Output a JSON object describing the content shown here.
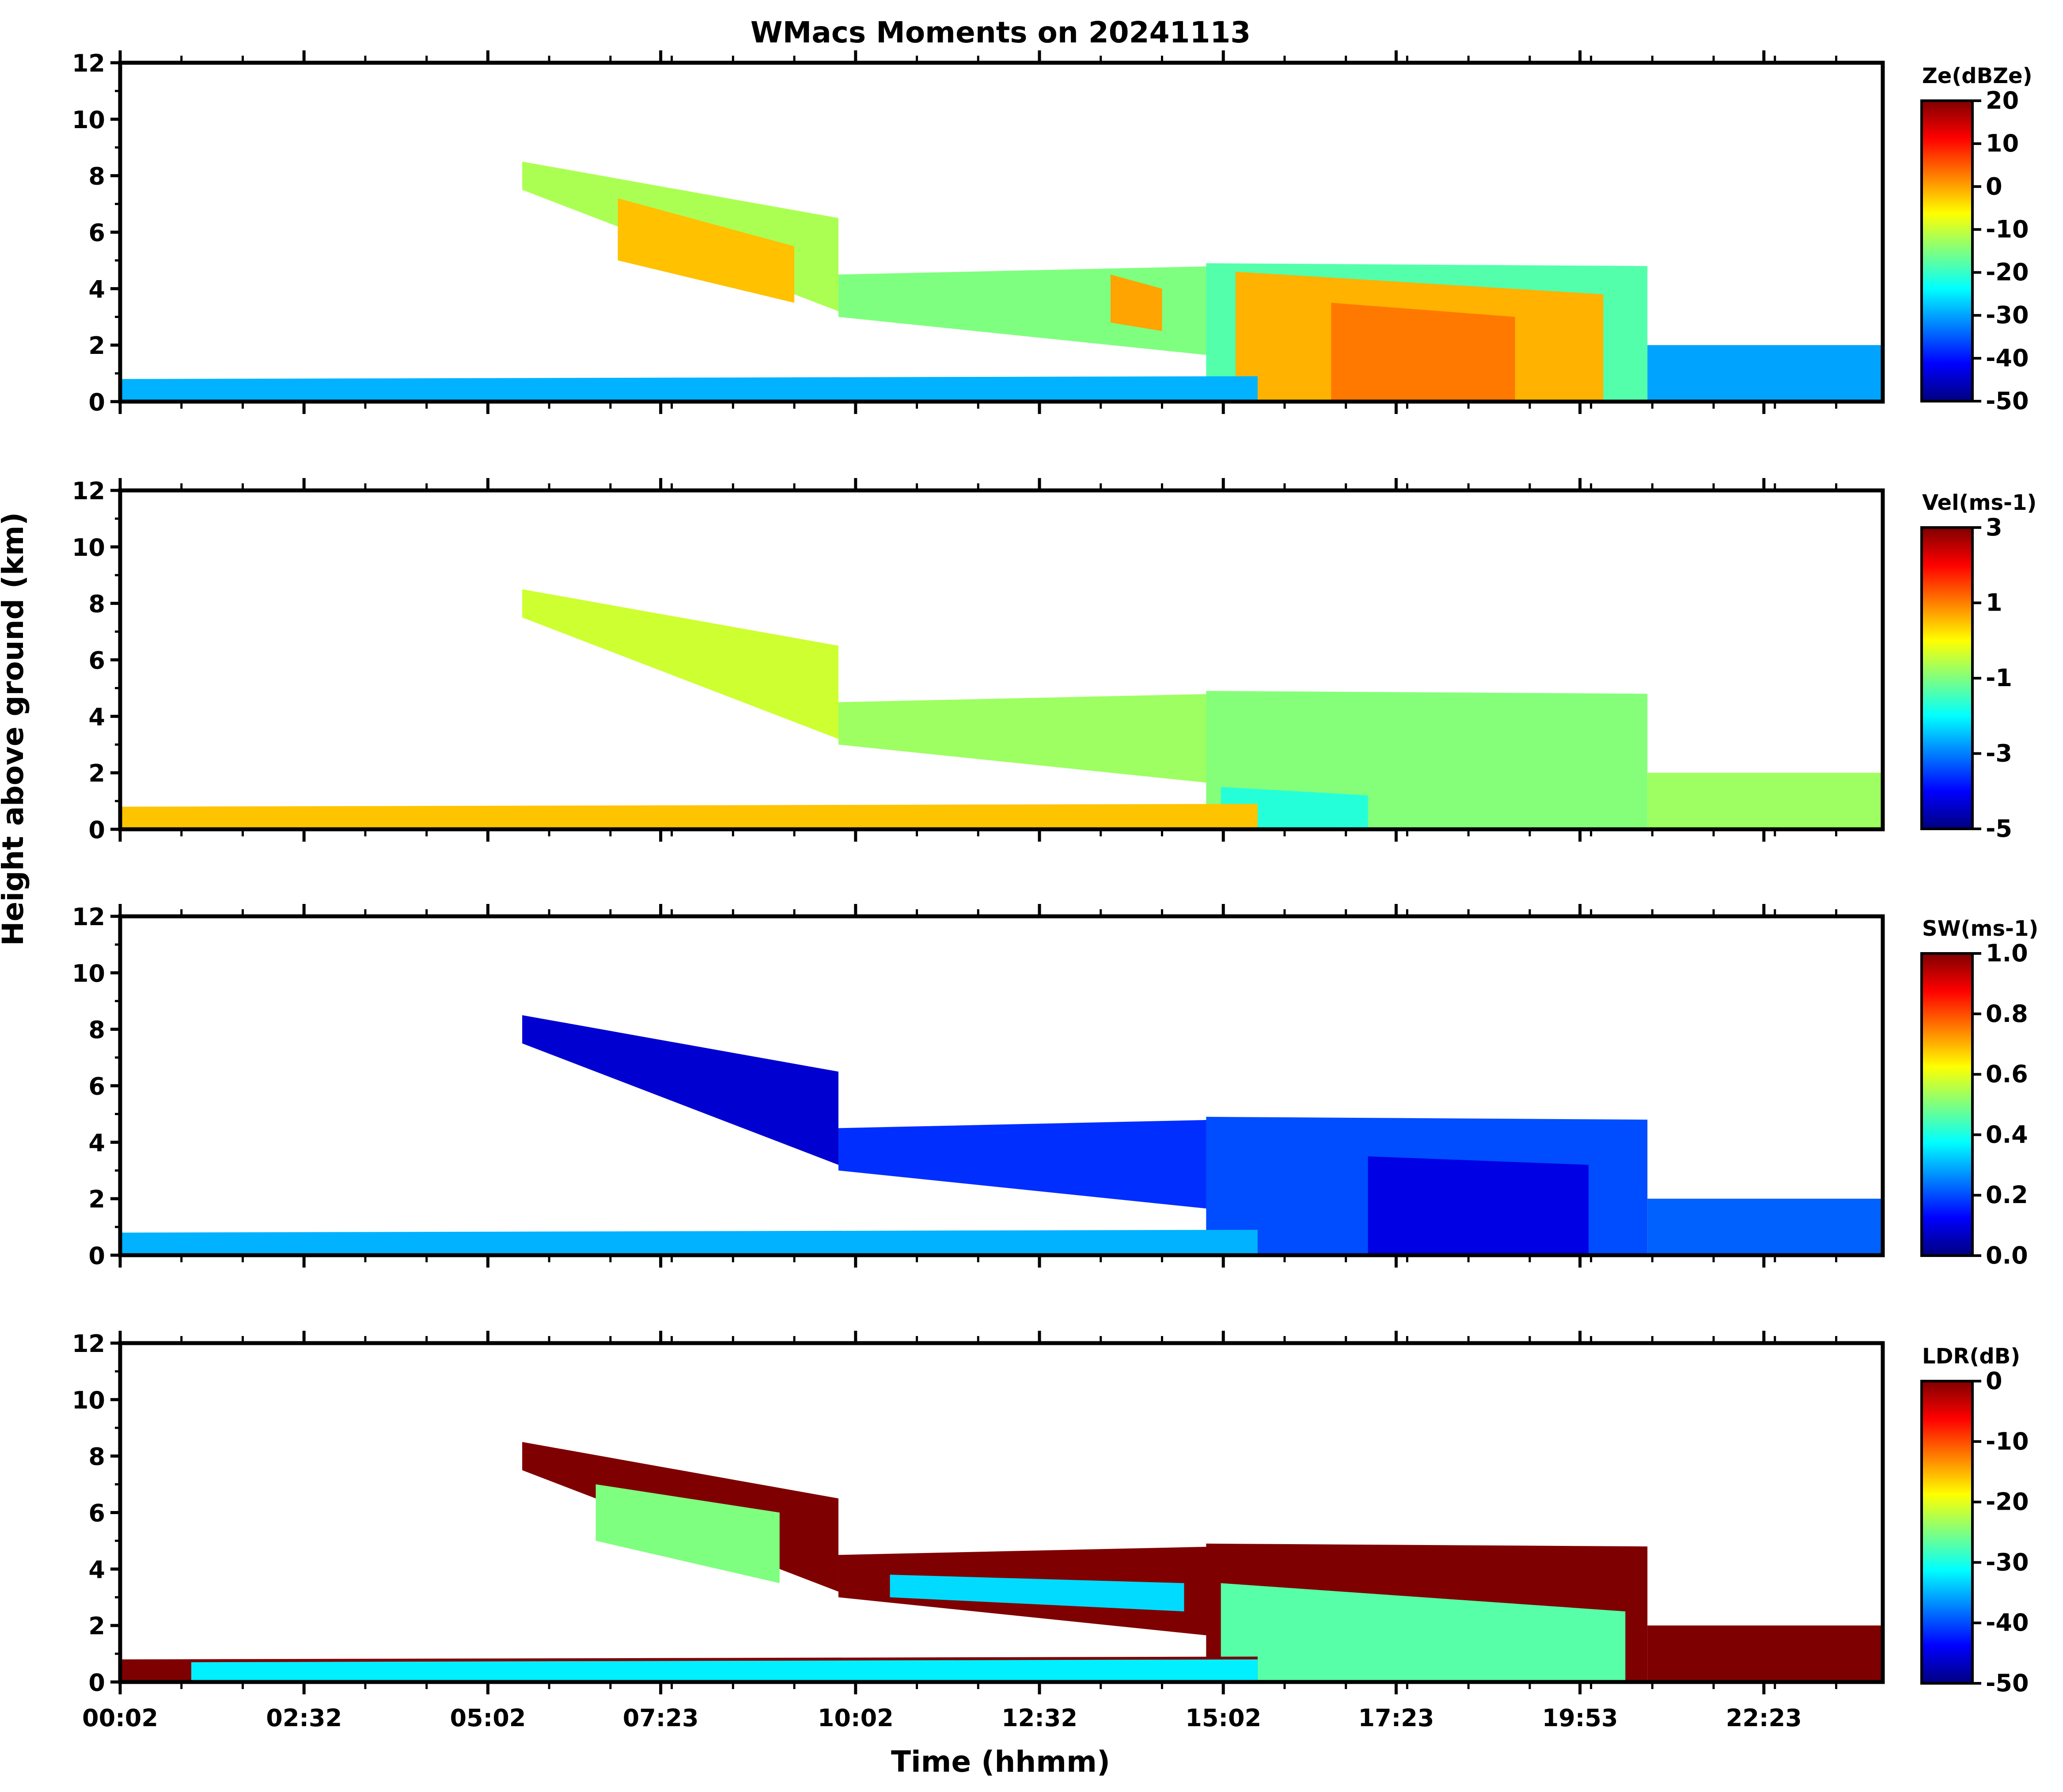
{
  "chart_data": {
    "type": "heatmap",
    "title": "WMacs Moments on 20241113",
    "xlabel": "Time (hhmm)",
    "ylabel": "Height above ground (km)",
    "xlim_hours": [
      0.0333,
      24.0
    ],
    "ylim": [
      0,
      12
    ],
    "x_ticks": [
      {
        "label": "00:02",
        "hour": 0.0333
      },
      {
        "label": "02:32",
        "hour": 2.5333
      },
      {
        "label": "05:02",
        "hour": 5.0333
      },
      {
        "label": "07:23",
        "hour": 7.3833
      },
      {
        "label": "10:02",
        "hour": 10.0333
      },
      {
        "label": "12:32",
        "hour": 12.5333
      },
      {
        "label": "15:02",
        "hour": 15.0333
      },
      {
        "label": "17:23",
        "hour": 17.3833
      },
      {
        "label": "19:53",
        "hour": 19.8833
      },
      {
        "label": "22:23",
        "hour": 22.3833
      }
    ],
    "y_ticks": [
      0,
      2,
      4,
      6,
      8,
      10,
      12
    ],
    "colormap": [
      "#00007f",
      "#0000ff",
      "#007fff",
      "#00ffff",
      "#7fff7f",
      "#ffff00",
      "#ff7f00",
      "#ff0000",
      "#7f0000"
    ],
    "panels": [
      {
        "name": "Ze",
        "colorbar_label": "Ze(dBZe)",
        "colorbar_ticks": [
          "20",
          "10",
          "0",
          "-10",
          "-20",
          "-30",
          "-40",
          "-50"
        ],
        "range": [
          -50,
          20
        ],
        "regions": [
          {
            "hours": [
              5.5,
              9.8
            ],
            "top_km": [
              8.5,
              6.5
            ],
            "base_km": [
              7.5,
              3.2
            ],
            "value": -12
          },
          {
            "hours": [
              6.8,
              9.2
            ],
            "top_km": [
              7.2,
              5.5
            ],
            "base_km": [
              5.0,
              3.5
            ],
            "value": -2
          },
          {
            "hours": [
              9.8,
              15.0
            ],
            "top_km": [
              4.5,
              4.8
            ],
            "base_km": [
              3.0,
              1.6
            ],
            "value": -15
          },
          {
            "hours": [
              13.5,
              14.2
            ],
            "top_km": [
              4.5,
              4.0
            ],
            "base_km": [
              2.8,
              2.5
            ],
            "value": 0
          },
          {
            "hours": [
              14.8,
              20.8
            ],
            "top_km": [
              4.9,
              4.8
            ],
            "base_km": [
              0.0,
              0.0
            ],
            "value": -18
          },
          {
            "hours": [
              15.2,
              20.2
            ],
            "top_km": [
              4.6,
              3.8
            ],
            "base_km": [
              0.0,
              0.0
            ],
            "value": -1
          },
          {
            "hours": [
              16.5,
              19.0
            ],
            "top_km": [
              3.5,
              3.0
            ],
            "base_km": [
              0.0,
              0.0
            ],
            "value": 3
          },
          {
            "hours": [
              20.8,
              24.0
            ],
            "top_km": [
              2.0,
              2.0
            ],
            "base_km": [
              0.0,
              0.0
            ],
            "value": -30
          },
          {
            "hours": [
              0.0333,
              15.5
            ],
            "top_km": [
              0.8,
              0.9
            ],
            "base_km": [
              0.0,
              0.0
            ],
            "value": -29
          }
        ]
      },
      {
        "name": "Vel",
        "colorbar_label": "Vel(ms-1)",
        "colorbar_ticks": [
          "3",
          "1",
          "-1",
          "-3",
          "-5"
        ],
        "range": [
          -5.5,
          3
        ],
        "regions": [
          {
            "hours": [
              5.5,
              9.8
            ],
            "top_km": [
              8.5,
              6.5
            ],
            "base_km": [
              7.5,
              3.2
            ],
            "value": -0.6
          },
          {
            "hours": [
              9.8,
              15.0
            ],
            "top_km": [
              4.5,
              4.8
            ],
            "base_km": [
              3.0,
              1.6
            ],
            "value": -1.0
          },
          {
            "hours": [
              14.8,
              20.8
            ],
            "top_km": [
              4.9,
              4.8
            ],
            "base_km": [
              0.0,
              0.0
            ],
            "value": -1.2
          },
          {
            "hours": [
              15.0,
              17.0
            ],
            "top_km": [
              1.5,
              1.2
            ],
            "base_km": [
              0.0,
              0.0
            ],
            "value": -2.0
          },
          {
            "hours": [
              20.8,
              24.0
            ],
            "top_km": [
              2.0,
              2.0
            ],
            "base_km": [
              0.0,
              0.0
            ],
            "value": -1.0
          },
          {
            "hours": [
              0.0333,
              15.5
            ],
            "top_km": [
              0.8,
              0.9
            ],
            "base_km": [
              0.0,
              0.0
            ],
            "value": 0.3
          }
        ]
      },
      {
        "name": "SW",
        "colorbar_label": "SW(ms-1)",
        "colorbar_ticks": [
          "1.0",
          "0.8",
          "0.6",
          "0.4",
          "0.2",
          "0.0"
        ],
        "range": [
          0,
          1
        ],
        "regions": [
          {
            "hours": [
              5.5,
              9.8
            ],
            "top_km": [
              8.5,
              6.5
            ],
            "base_km": [
              7.5,
              3.2
            ],
            "value": 0.08
          },
          {
            "hours": [
              9.8,
              15.0
            ],
            "top_km": [
              4.5,
              4.8
            ],
            "base_km": [
              3.0,
              1.6
            ],
            "value": 0.17
          },
          {
            "hours": [
              14.8,
              20.8
            ],
            "top_km": [
              4.9,
              4.8
            ],
            "base_km": [
              0.0,
              0.0
            ],
            "value": 0.2
          },
          {
            "hours": [
              17.0,
              20.0
            ],
            "top_km": [
              3.5,
              3.2
            ],
            "base_km": [
              0.0,
              0.0
            ],
            "value": 0.1
          },
          {
            "hours": [
              20.8,
              24.0
            ],
            "top_km": [
              2.0,
              2.0
            ],
            "base_km": [
              0.0,
              0.0
            ],
            "value": 0.22
          },
          {
            "hours": [
              0.0333,
              15.5
            ],
            "top_km": [
              0.8,
              0.9
            ],
            "base_km": [
              0.0,
              0.0
            ],
            "value": 0.3
          }
        ]
      },
      {
        "name": "LDR",
        "colorbar_label": "LDR(dB)",
        "colorbar_ticks": [
          "0",
          "-10",
          "-20",
          "-30",
          "-40",
          "-50"
        ],
        "range": [
          -50,
          0
        ],
        "regions": [
          {
            "hours": [
              5.5,
              9.8
            ],
            "top_km": [
              8.5,
              6.5
            ],
            "base_km": [
              7.5,
              3.2
            ],
            "value": 0
          },
          {
            "hours": [
              6.5,
              9.0
            ],
            "top_km": [
              7.0,
              6.0
            ],
            "base_km": [
              5.0,
              3.5
            ],
            "value": -25
          },
          {
            "hours": [
              9.8,
              15.0
            ],
            "top_km": [
              4.5,
              4.8
            ],
            "base_km": [
              3.0,
              1.6
            ],
            "value": 0
          },
          {
            "hours": [
              10.5,
              14.5
            ],
            "top_km": [
              3.8,
              3.5
            ],
            "base_km": [
              3.0,
              2.5
            ],
            "value": -33
          },
          {
            "hours": [
              14.8,
              20.8
            ],
            "top_km": [
              4.9,
              4.8
            ],
            "base_km": [
              0.0,
              0.0
            ],
            "value": 0
          },
          {
            "hours": [
              15.0,
              20.5
            ],
            "top_km": [
              3.5,
              2.5
            ],
            "base_km": [
              0.0,
              0.0
            ],
            "value": -27
          },
          {
            "hours": [
              20.8,
              24.0
            ],
            "top_km": [
              2.0,
              2.0
            ],
            "base_km": [
              0.0,
              0.0
            ],
            "value": 0
          },
          {
            "hours": [
              0.0333,
              15.5
            ],
            "top_km": [
              0.8,
              0.9
            ],
            "base_km": [
              0.0,
              0.0
            ],
            "value": 0
          },
          {
            "hours": [
              1.0,
              15.5
            ],
            "top_km": [
              0.7,
              0.8
            ],
            "base_km": [
              0.05,
              0.05
            ],
            "value": -32
          }
        ]
      }
    ]
  }
}
